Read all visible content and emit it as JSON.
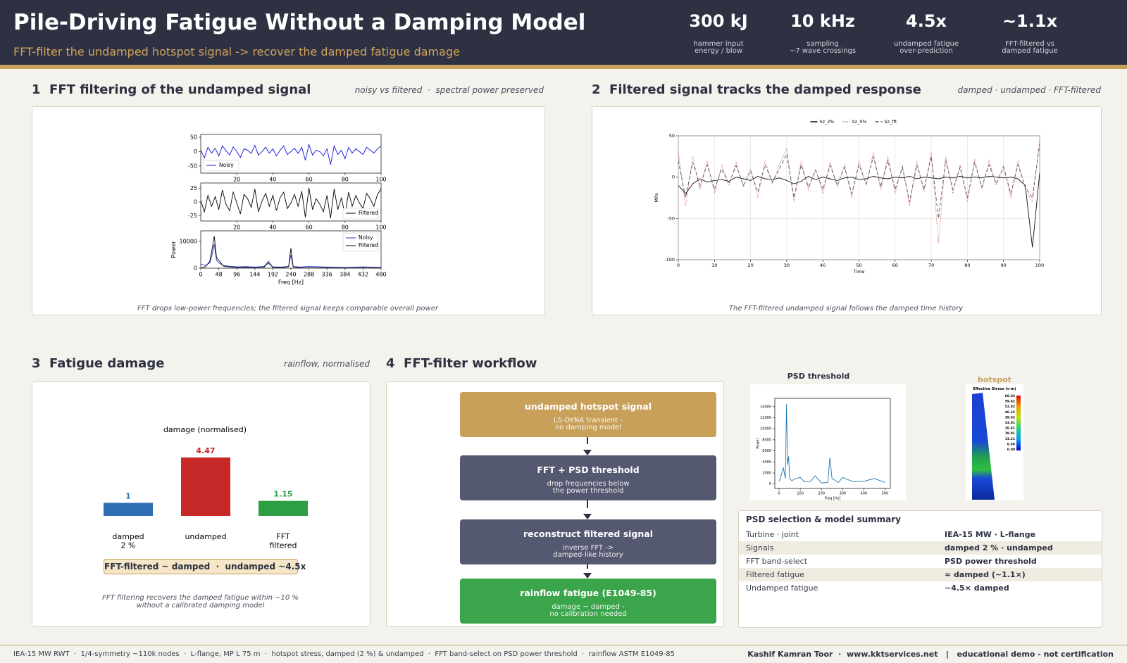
{
  "header": {
    "title": "Pile-Driving Fatigue Without a Damping Model",
    "subtitle": "FFT-filter the undamped hotspot signal -> recover the damped fatigue damage"
  },
  "kpis": [
    {
      "value": "300 kJ",
      "label": "hammer input\nenergy / blow"
    },
    {
      "value": "10 kHz",
      "label": "sampling\n~7 wave crossings"
    },
    {
      "value": "4.5x",
      "label": "undamped fatigue\nover-prediction"
    },
    {
      "value": "~1.1x",
      "label": "FFT-filtered vs\ndamped fatigue"
    }
  ],
  "panels": [
    {
      "heading": "1  FFT filtering of the undamped signal",
      "note": "noisy vs filtered  ·  spectral power preserved",
      "caption": "FFT drops low-power frequencies; the filtered signal keeps comparable overall power"
    },
    {
      "heading": "2  Filtered signal tracks the damped response",
      "note": "damped · undamped · FFT-filtered",
      "caption": "The FFT-filtered undamped signal follows the damped time history"
    },
    {
      "heading": "3  Fatigue damage",
      "note": "rainflow, normalised",
      "badge": "FFT-filtered ~ damped  ·  undamped ~4.5x",
      "caption": "FFT filtering recovers the damped fatigue within ~10 %\nwithout a calibrated damping model"
    },
    {
      "heading": "4  FFT-filter workflow"
    }
  ],
  "workflow": [
    {
      "title": "undamped hotspot signal",
      "sub": "LS-DYNA transient -\nno damping model"
    },
    {
      "title": "FFT + PSD threshold",
      "sub": "drop frequencies below\nthe power threshold"
    },
    {
      "title": "reconstruct filtered signal",
      "sub": "inverse FFT ->\ndamped-like history"
    },
    {
      "title": "rainflow fatigue (E1049-85)",
      "sub": "damage ~ damped -\nno calibration needed"
    }
  ],
  "hotspot": {
    "title": "hotspot",
    "colorbar_title": "Effective Stress (v-m)",
    "colorbar_labels": [
      "66.03",
      "59.42",
      "52.82",
      "46.22",
      "39.62",
      "33.01",
      "26.41",
      "19.81",
      "13.21",
      "6.60",
      "0.00"
    ]
  },
  "table": {
    "title": "PSD selection & model summary",
    "rows": [
      [
        "Turbine · joint",
        "IEA-15 MW · L-flange"
      ],
      [
        "Signals",
        "damped 2 % · undamped"
      ],
      [
        "FFT band-select",
        "PSD power threshold"
      ],
      [
        "Filtered fatigue",
        "≈ damped (~1.1×)"
      ],
      [
        "Undamped fatigue",
        "~4.5× damped"
      ]
    ]
  },
  "footer": {
    "left": "IEA-15 MW RWT  ·  1/4-symmetry ~110k nodes  ·  L-flange, MP L 75 m  ·  hotspot stress, damped (2 %) & undamped  ·  FFT band-select on PSD power threshold  ·  rainflow ASTM E1049-85",
    "right": "Kashif Kamran Toor  ·  www.kktservices.net   |   educational demo - not certification"
  },
  "chart_data": [
    {
      "type": "line",
      "x": [
        0,
        2,
        4,
        6,
        8,
        10,
        12,
        14,
        16,
        18,
        20,
        22,
        24,
        26,
        28,
        30,
        32,
        34,
        36,
        38,
        40,
        42,
        44,
        46,
        48,
        50,
        52,
        54,
        56,
        58,
        60,
        62,
        64,
        66,
        68,
        70,
        72,
        74,
        76,
        78,
        80,
        82,
        84,
        86,
        88,
        90,
        92,
        94,
        96,
        98,
        100
      ],
      "series": [
        {
          "name": "Noisy",
          "color": "#1010e0",
          "values": [
            5,
            -22,
            15,
            -5,
            12,
            -15,
            20,
            4,
            -12,
            16,
            0,
            -20,
            10,
            5,
            -6,
            22,
            -12,
            0,
            15,
            -5,
            10,
            -15,
            5,
            20,
            -10,
            0,
            12,
            -6,
            15,
            -30,
            25,
            -12,
            5,
            0,
            -15,
            10,
            -45,
            20,
            -10,
            5,
            -25,
            15,
            -5,
            10,
            0,
            -10,
            15,
            5,
            -5,
            10,
            20
          ]
        }
      ],
      "xlim": [
        0,
        100
      ],
      "ylim": [
        -75,
        60
      ],
      "xticks": [
        20,
        40,
        60,
        80,
        100
      ],
      "yticks": [
        -50,
        0,
        50
      ],
      "legend": "lower left"
    },
    {
      "type": "line",
      "x": [
        0,
        2,
        4,
        6,
        8,
        10,
        12,
        14,
        16,
        18,
        20,
        22,
        24,
        26,
        28,
        30,
        32,
        34,
        36,
        38,
        40,
        42,
        44,
        46,
        48,
        50,
        52,
        54,
        56,
        58,
        60,
        62,
        64,
        66,
        68,
        70,
        72,
        74,
        76,
        78,
        80,
        82,
        84,
        86,
        88,
        90,
        92,
        94,
        96,
        98,
        100
      ],
      "series": [
        {
          "name": "Filtered",
          "color": "#000000",
          "values": [
            3,
            -18,
            12,
            -8,
            10,
            -14,
            22,
            -4,
            -16,
            18,
            -2,
            -22,
            14,
            6,
            -10,
            24,
            -18,
            2,
            16,
            -8,
            12,
            -16,
            8,
            18,
            -12,
            -2,
            14,
            -8,
            20,
            -28,
            26,
            -14,
            6,
            -4,
            -18,
            12,
            -30,
            24,
            -14,
            8,
            -24,
            18,
            -8,
            12,
            -2,
            -12,
            16,
            6,
            -8,
            14,
            24
          ]
        }
      ],
      "xlim": [
        0,
        100
      ],
      "ylim": [
        -35,
        35
      ],
      "xticks": [
        20,
        40,
        60,
        80,
        100
      ],
      "yticks": [
        -25,
        0,
        25
      ],
      "legend": "lower right"
    },
    {
      "type": "line",
      "ylabel": "Power",
      "xlabel": "Freq [Hz]",
      "x": [
        0,
        12,
        24,
        30,
        36,
        42,
        48,
        60,
        72,
        96,
        120,
        144,
        168,
        180,
        192,
        216,
        234,
        240,
        246,
        264,
        288,
        336,
        384,
        432,
        480
      ],
      "series": [
        {
          "name": "Noisy",
          "color": "#2030d0",
          "values": [
            1500,
            1000,
            2000,
            5000,
            9000,
            3000,
            2000,
            1000,
            800,
            500,
            600,
            400,
            700,
            1800,
            500,
            400,
            700,
            5000,
            600,
            400,
            700,
            400,
            300,
            500,
            300
          ]
        },
        {
          "name": "Filtered",
          "color": "#000000",
          "values": [
            0,
            500,
            2500,
            7000,
            12000,
            4000,
            3000,
            800,
            500,
            200,
            300,
            100,
            200,
            2500,
            200,
            100,
            600,
            7500,
            500,
            100,
            100,
            100,
            50,
            100,
            50
          ]
        }
      ],
      "xlim": [
        0,
        480
      ],
      "ylim": [
        0,
        14000
      ],
      "xticks": [
        0,
        48,
        96,
        144,
        192,
        240,
        288,
        336,
        384,
        432,
        480
      ],
      "yticks": [
        0,
        10000
      ],
      "legend": "upper right"
    },
    {
      "type": "line",
      "ylabel": "MPa",
      "xlabel": "Time",
      "x": [
        0,
        2,
        4,
        6,
        8,
        10,
        12,
        14,
        16,
        18,
        20,
        22,
        24,
        26,
        28,
        30,
        32,
        34,
        36,
        38,
        40,
        42,
        44,
        46,
        48,
        50,
        52,
        54,
        56,
        58,
        60,
        62,
        64,
        66,
        68,
        70,
        72,
        74,
        76,
        78,
        80,
        82,
        84,
        86,
        88,
        90,
        92,
        94,
        96,
        98,
        100
      ],
      "series": [
        {
          "name": "Sz_2%",
          "color": "#111111",
          "style": "solid",
          "values": [
            -10,
            -20,
            -8,
            -2,
            -6,
            -4,
            -3,
            -5,
            0,
            -2,
            -4,
            1,
            -2,
            -3,
            -1,
            -4,
            -8,
            -5,
            1,
            -3,
            0,
            -2,
            -4,
            -1,
            0,
            -3,
            -2,
            1,
            -1,
            -2,
            0,
            -1,
            1,
            -2,
            0,
            -1,
            -2,
            0,
            -1,
            1,
            -1,
            0,
            -1,
            1,
            0,
            -1,
            0,
            -2,
            -10,
            -85,
            5
          ]
        },
        {
          "name": "Sz_0%",
          "color": "#e07a7a",
          "style": "dotted",
          "values": [
            30,
            -35,
            25,
            -15,
            20,
            -20,
            15,
            -10,
            18,
            -12,
            10,
            -25,
            20,
            -8,
            15,
            35,
            -30,
            20,
            -15,
            10,
            -20,
            18,
            -12,
            15,
            -25,
            20,
            -10,
            30,
            -15,
            25,
            -20,
            15,
            -35,
            20,
            -18,
            30,
            -80,
            25,
            -20,
            15,
            -30,
            22,
            -15,
            20,
            -10,
            15,
            -25,
            20,
            -15,
            -30,
            45
          ]
        },
        {
          "name": "Sz_fft",
          "color": "#555555",
          "style": "dashed",
          "values": [
            20,
            -25,
            18,
            -10,
            15,
            -15,
            10,
            -8,
            14,
            -10,
            8,
            -18,
            15,
            -6,
            10,
            28,
            -25,
            15,
            -12,
            8,
            -15,
            14,
            -10,
            12,
            -20,
            15,
            -8,
            25,
            -12,
            20,
            -15,
            12,
            -30,
            15,
            -15,
            25,
            -50,
            20,
            -15,
            12,
            -25,
            18,
            -12,
            15,
            -8,
            12,
            -20,
            15,
            -12,
            -25,
            40
          ]
        }
      ],
      "xlim": [
        0,
        100
      ],
      "ylim": [
        -100,
        50
      ],
      "xticks": [
        0,
        10,
        20,
        30,
        40,
        50,
        60,
        70,
        80,
        90,
        100
      ],
      "yticks": [
        -100,
        -50,
        0,
        50
      ],
      "grid": true,
      "legend": "upper center"
    },
    {
      "type": "bar",
      "title": "damage (normalised)",
      "categories": [
        "damped\n2 %",
        "undamped",
        "FFT\nfiltered"
      ],
      "values": [
        1,
        4.47,
        1.15
      ],
      "colors": [
        "#2e6db4",
        "#c62828",
        "#2e9e44"
      ]
    },
    {
      "type": "line",
      "title": "PSD threshold",
      "ylabel": "Power",
      "xlabel": "Freq [Hz]",
      "x": [
        0,
        10,
        20,
        25,
        30,
        35,
        40,
        45,
        50,
        60,
        80,
        100,
        120,
        150,
        170,
        200,
        230,
        240,
        250,
        280,
        300,
        350,
        400,
        450,
        500
      ],
      "series": [
        {
          "name": "PSD",
          "color": "#1f77b4",
          "values": [
            500,
            1500,
            3000,
            2000,
            1000,
            14500,
            3500,
            5000,
            1000,
            600,
            1000,
            1200,
            400,
            500,
            1500,
            200,
            300,
            4800,
            1000,
            300,
            1200,
            400,
            500,
            1000,
            300
          ]
        }
      ],
      "xlim": [
        -20,
        525
      ],
      "ylim": [
        -800,
        15500
      ],
      "xticks": [
        0,
        100,
        200,
        300,
        400,
        500
      ],
      "yticks": [
        0,
        2000,
        4000,
        6000,
        8000,
        10000,
        12000,
        14000
      ]
    }
  ]
}
